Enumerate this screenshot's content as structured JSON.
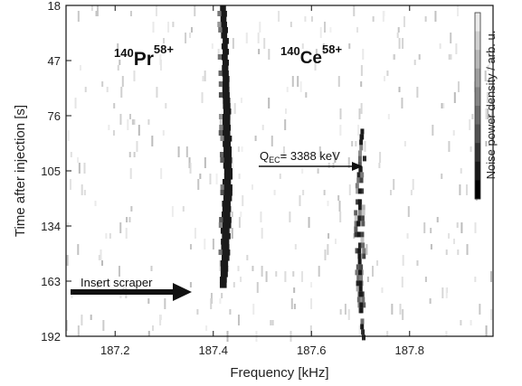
{
  "chart_data": {
    "type": "heatmap",
    "xlabel": "Frequency [kHz]",
    "ylabel": "Time after injection [s]",
    "colorbar_label": "Noise power density / arb. u.",
    "xlim": [
      187.1,
      187.97
    ],
    "ylim": [
      18,
      192
    ],
    "x_ticks": [
      {
        "value": 187.2,
        "label": "187.2"
      },
      {
        "value": 187.4,
        "label": "187.4"
      },
      {
        "value": 187.6,
        "label": "187.6"
      },
      {
        "value": 187.8,
        "label": "187.8"
      }
    ],
    "y_ticks": [
      {
        "value": 18,
        "label": "18"
      },
      {
        "value": 47,
        "label": "47"
      },
      {
        "value": 76,
        "label": "76"
      },
      {
        "value": 105,
        "label": "105"
      },
      {
        "value": 134,
        "label": "134"
      },
      {
        "value": 163,
        "label": "163"
      },
      {
        "value": 192,
        "label": "192"
      }
    ],
    "colorbar_levels": [
      0.08,
      0.18,
      0.28,
      0.38,
      0.48,
      0.58,
      0.68,
      0.8,
      0.9,
      1.0
    ],
    "tracks": [
      {
        "name": "140Pr58+",
        "points": [
          {
            "t": 18,
            "f": 187.421,
            "w": 0.012
          },
          {
            "t": 47,
            "f": 187.425,
            "w": 0.013
          },
          {
            "t": 76,
            "f": 187.428,
            "w": 0.016
          },
          {
            "t": 105,
            "f": 187.43,
            "w": 0.017
          },
          {
            "t": 134,
            "f": 187.426,
            "w": 0.018
          },
          {
            "t": 163,
            "f": 187.422,
            "w": 0.014
          }
        ]
      },
      {
        "name": "140Ce58+",
        "points": [
          {
            "t": 80,
            "f": 187.704,
            "w": 0.006
          },
          {
            "t": 105,
            "f": 187.7,
            "w": 0.014
          },
          {
            "t": 134,
            "f": 187.696,
            "w": 0.022
          },
          {
            "t": 163,
            "f": 187.7,
            "w": 0.016
          },
          {
            "t": 192,
            "f": 187.704,
            "w": 0.005
          }
        ]
      }
    ],
    "annotations": {
      "pr_mass": "140",
      "pr_elem": "Pr",
      "pr_charge": "58+",
      "ce_mass": "140",
      "ce_elem": "Ce",
      "ce_charge": "58+",
      "q_prefix": "Q",
      "q_sub": "EC",
      "q_value": "= 3388 keV",
      "scraper": "Insert scraper"
    },
    "colors": {
      "strong": "#1a1a1a",
      "frame": "#111111",
      "background": "#ffffff"
    }
  }
}
